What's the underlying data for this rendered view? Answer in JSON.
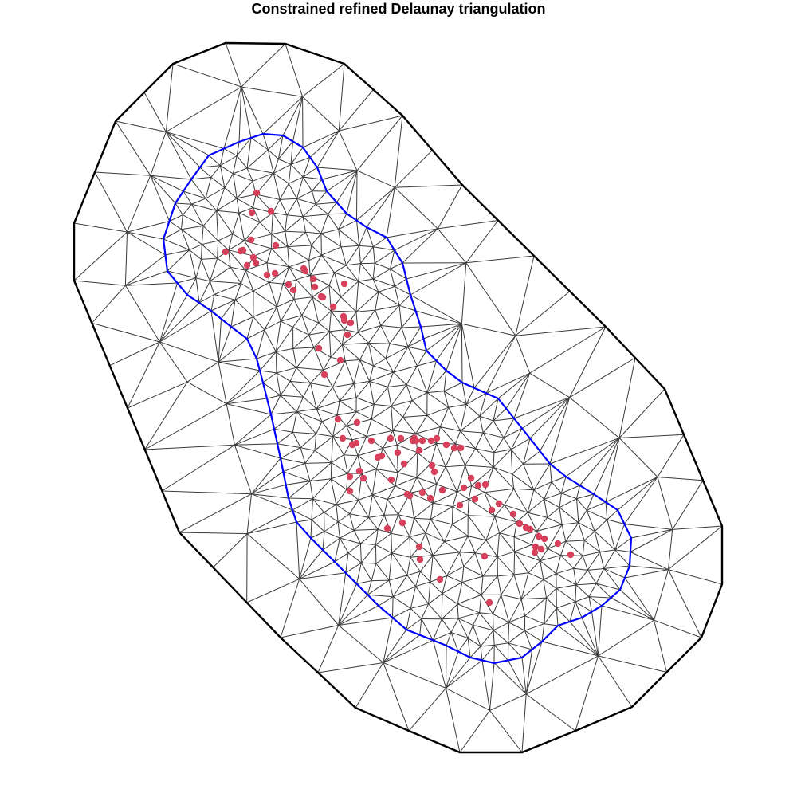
{
  "title": "Constrained refined Delaunay triangulation",
  "colors": {
    "mesh_edge": "#3a3a3a",
    "outer_boundary": "#000000",
    "inner_boundary": "#0000ff",
    "points": "#d6405a"
  }
}
